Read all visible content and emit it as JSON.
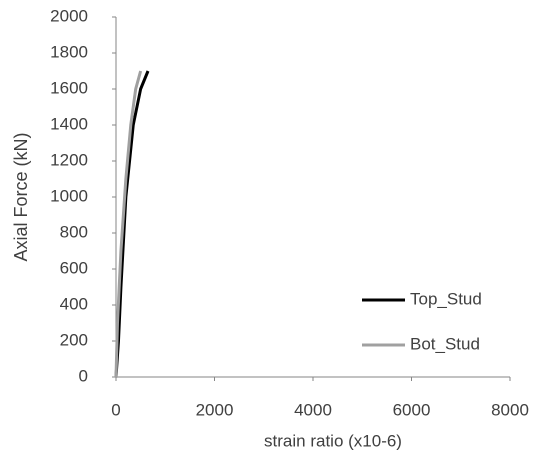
{
  "chart_data": {
    "type": "line",
    "x_label": "strain ratio (x10-6)",
    "y_label": "Axial Force (kN)",
    "xlim": [
      0,
      8000
    ],
    "xticks": [
      0,
      2000,
      4000,
      6000,
      8000
    ],
    "ylim": [
      0,
      2000
    ],
    "yticks": [
      0,
      200,
      400,
      600,
      800,
      1000,
      1200,
      1400,
      1600,
      1800,
      2000
    ],
    "grid": false,
    "legend": "right",
    "series": [
      {
        "name": "Top_Stud",
        "color": "#000000",
        "x": [
          0,
          50,
          100,
          200,
          350,
          500,
          650
        ],
        "values": [
          0,
          200,
          500,
          1000,
          1400,
          1600,
          1700
        ]
      },
      {
        "name": "Bot_Stud",
        "color": "#a0a0a0",
        "x": [
          0,
          30,
          100,
          200,
          300,
          400,
          500
        ],
        "values": [
          0,
          300,
          700,
          1100,
          1400,
          1600,
          1700
        ]
      }
    ]
  }
}
